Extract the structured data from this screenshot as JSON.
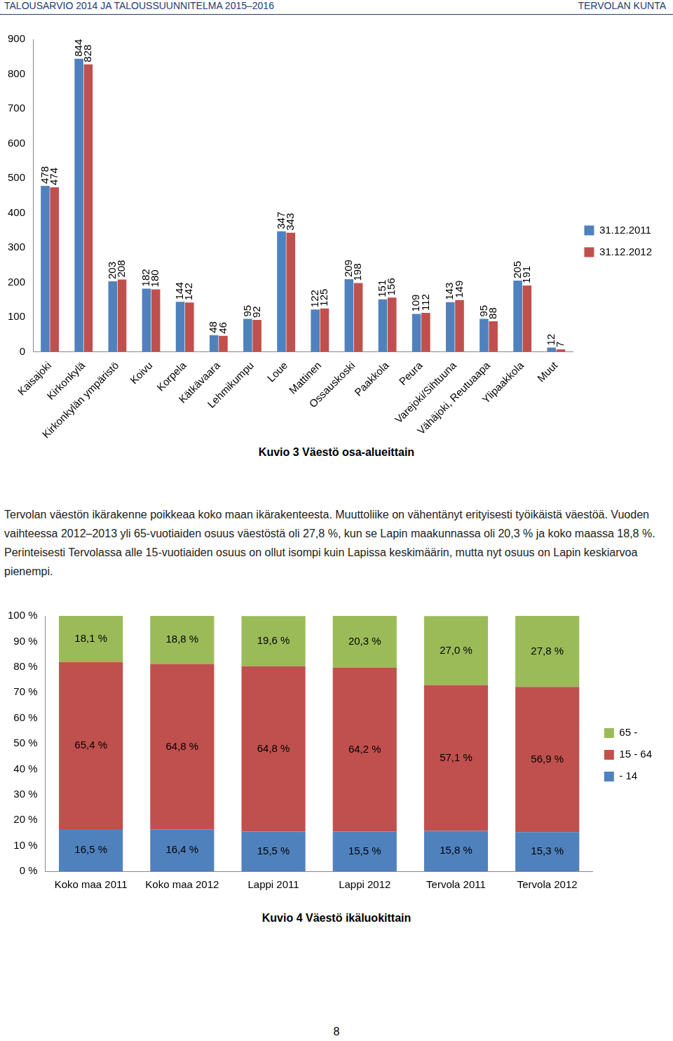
{
  "header": {
    "left": "TALOUSARVIO 2014 JA TALOUSSUUNNITELMA 2015–2016",
    "right": "TERVOLAN KUNTA"
  },
  "chart_data": [
    {
      "type": "bar",
      "title": "Kuvio 3 Väestö osa-alueittain",
      "categories": [
        "Kaisajoki",
        "Kirkonkylä",
        "Kirkonkylän ympäristö",
        "Koivu",
        "Korpela",
        "Kätkävaara",
        "Lehmikumpu",
        "Loue",
        "Mattinen",
        "Ossauskoski",
        "Paakkola",
        "Peura",
        "Varejoki/Sihtuuna",
        "Vähäjoki, Reutuaapa",
        "Ylipaakkola",
        "Muut"
      ],
      "series": [
        {
          "name": "31.12.2011",
          "color": "#4f81bd",
          "values": [
            478,
            844,
            203,
            182,
            144,
            48,
            95,
            347,
            122,
            209,
            151,
            109,
            143,
            95,
            205,
            12
          ]
        },
        {
          "name": "31.12.2012",
          "color": "#c0504d",
          "values": [
            474,
            828,
            208,
            180,
            142,
            46,
            92,
            343,
            125,
            198,
            156,
            112,
            149,
            88,
            191,
            7
          ]
        }
      ],
      "ylim": [
        0,
        900
      ],
      "yticks": [
        0,
        100,
        200,
        300,
        400,
        500,
        600,
        700,
        800,
        900
      ],
      "grid": false,
      "legend": "right",
      "data_labels": true
    },
    {
      "type": "bar",
      "title": "Kuvio 4 Väestö ikäluokittain",
      "categories": [
        "Koko maa 2011",
        "Koko maa 2012",
        "Lappi 2011",
        "Lappi 2012",
        "Tervola 2011",
        "Tervola 2012"
      ],
      "series": [
        {
          "name": "- 14",
          "color": "#4f81bd",
          "values": [
            16.5,
            16.4,
            15.5,
            15.5,
            15.8,
            15.3
          ],
          "value_labels": [
            "16,5 %",
            "16,4 %",
            "15,5 %",
            "15,5 %",
            "15,8 %",
            "15,3 %"
          ]
        },
        {
          "name": "15 - 64",
          "color": "#c0504d",
          "values": [
            65.4,
            64.8,
            64.8,
            64.2,
            57.1,
            56.9
          ],
          "value_labels": [
            "65,4 %",
            "64,8 %",
            "64,8 %",
            "64,2 %",
            "57,1 %",
            "56,9 %"
          ]
        },
        {
          "name": "65 -",
          "color": "#9bbb59",
          "values": [
            18.1,
            18.8,
            19.6,
            20.3,
            27.0,
            27.8
          ],
          "value_labels": [
            "18,1 %",
            "18,8 %",
            "19,6 %",
            "20,3 %",
            "27,0 %",
            "27,8 %"
          ]
        }
      ],
      "ylim": [
        0,
        100
      ],
      "yticks": [
        {
          "value": 0,
          "label": "0 %"
        },
        {
          "value": 10,
          "label": "10 %"
        },
        {
          "value": 20,
          "label": "20 %"
        },
        {
          "value": 30,
          "label": "30 %"
        },
        {
          "value": 40,
          "label": "40 %"
        },
        {
          "value": 50,
          "label": "50 %"
        },
        {
          "value": 60,
          "label": "60 %"
        },
        {
          "value": 70,
          "label": "70 %"
        },
        {
          "value": 80,
          "label": "80 %"
        },
        {
          "value": 90,
          "label": "90 %"
        },
        {
          "value": 100,
          "label": "100 %"
        }
      ],
      "stacked": true,
      "grid": false,
      "legend": "right",
      "data_labels": true
    }
  ],
  "paragraph": "Tervolan väestön ikärakenne poikkeaa koko maan ikärakenteesta. Muuttoliike on vähentänyt erityisesti työikäistä väestöä. Vuoden vaihteessa 2012–2013 yli 65-vuotiaiden osuus väestöstä oli 27,8 %, kun se Lapin maakunnassa oli 20,3 % ja koko maassa 18,8 %. Perinteisesti Tervolassa alle 15-vuotiaiden osuus on ollut isompi kuin Lapissa keskimäärin, mutta nyt osuus on Lapin keskiarvoa pienempi.",
  "page_number": "8"
}
